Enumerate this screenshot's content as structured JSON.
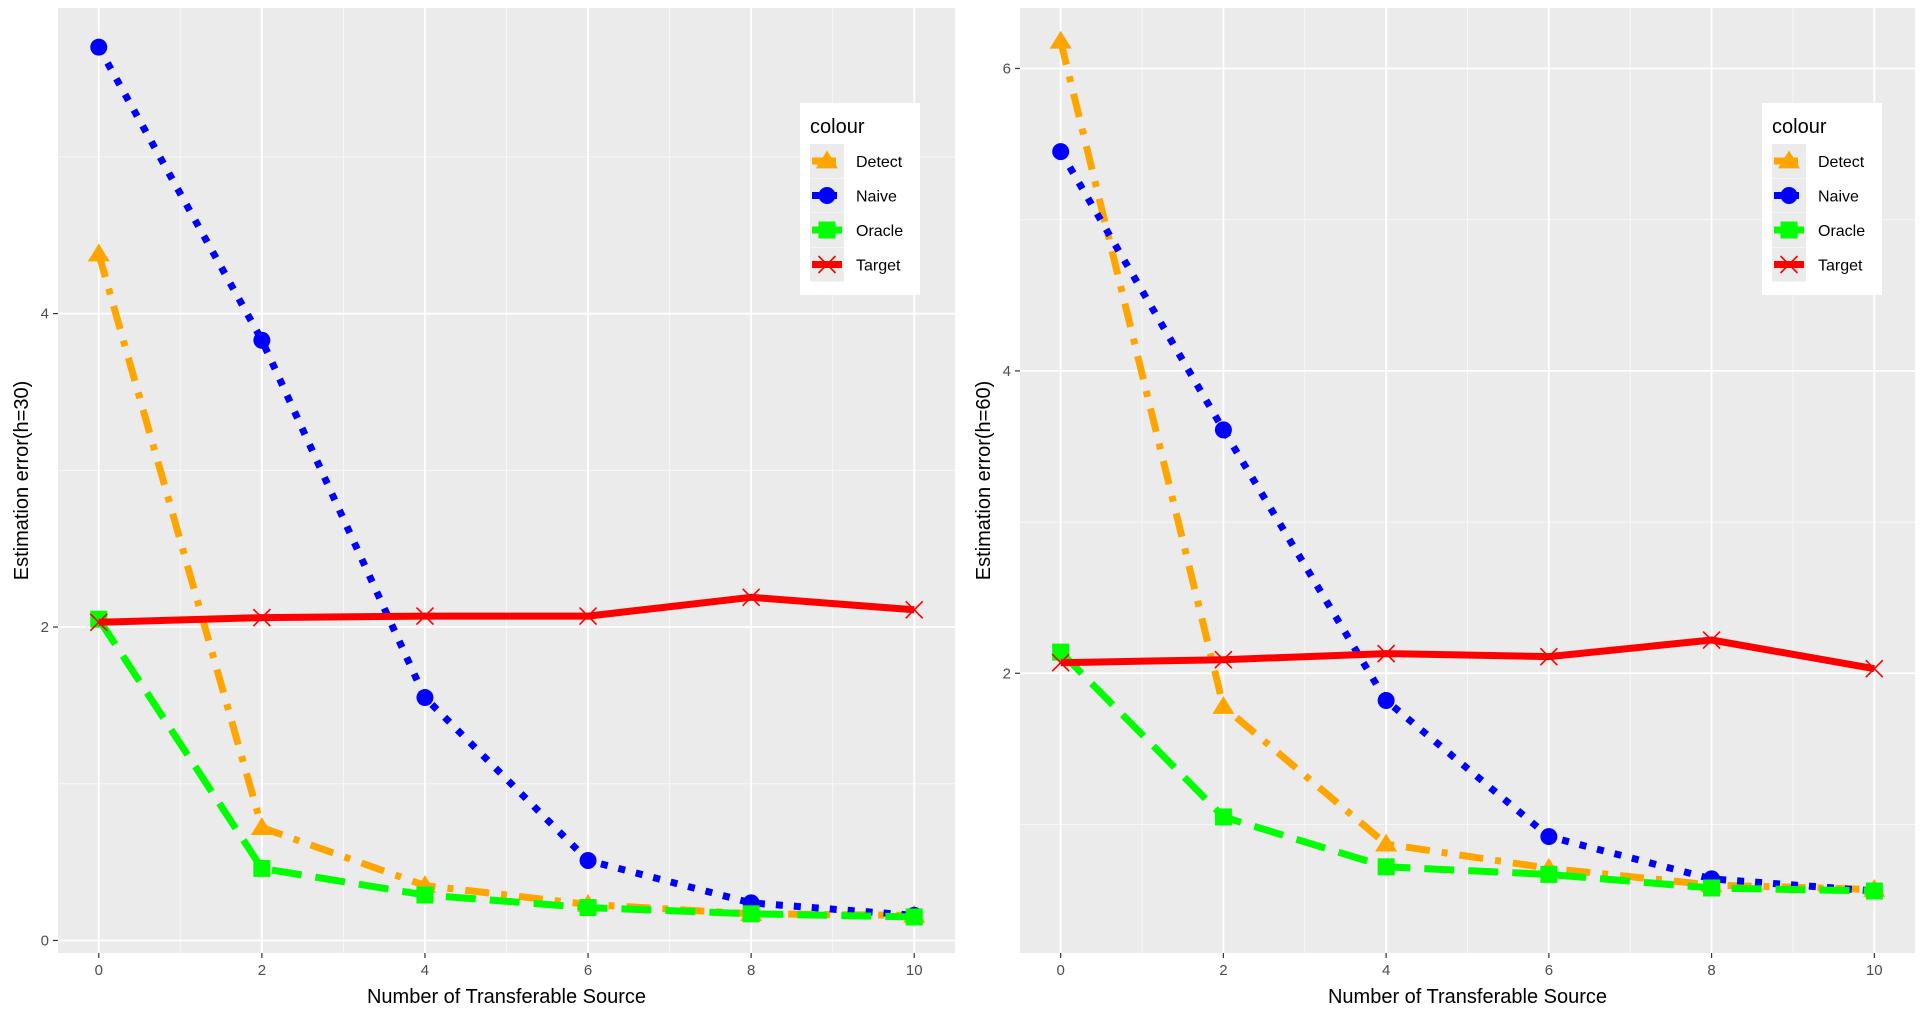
{
  "chart_data": [
    {
      "type": "line",
      "xlabel": "Number of Transferable Source",
      "ylabel": "Estimation error(h=30)",
      "x": [
        0,
        2,
        4,
        6,
        8,
        10
      ],
      "xticks": [
        0,
        2,
        4,
        6,
        8,
        10
      ],
      "yticks": [
        0,
        2,
        4
      ],
      "xlim": [
        -0.5,
        10.5
      ],
      "ylim": [
        -0.08,
        5.95
      ],
      "legend_title": "colour",
      "legend_position": "top-right",
      "series": [
        {
          "name": "Detect",
          "values": [
            4.38,
            0.72,
            0.35,
            0.23,
            0.17,
            0.16
          ],
          "color": "#FFA500",
          "marker": "triangle",
          "linestyle": "dashdot"
        },
        {
          "name": "Naive",
          "values": [
            5.7,
            3.83,
            1.55,
            0.51,
            0.24,
            0.16
          ],
          "color": "#0000FF",
          "marker": "circle",
          "linestyle": "dotted"
        },
        {
          "name": "Oracle",
          "values": [
            2.05,
            0.46,
            0.29,
            0.21,
            0.17,
            0.15
          ],
          "color": "#00FF00",
          "marker": "square",
          "linestyle": "dashed"
        },
        {
          "name": "Target",
          "values": [
            2.03,
            2.06,
            2.07,
            2.07,
            2.19,
            2.11
          ],
          "color": "#FF0000",
          "marker": "x",
          "linestyle": "solid"
        }
      ]
    },
    {
      "type": "line",
      "xlabel": "Number of Transferable Source",
      "ylabel": "Estimation error(h=60)",
      "x": [
        0,
        2,
        4,
        6,
        8,
        10
      ],
      "xticks": [
        0,
        2,
        4,
        6,
        8,
        10
      ],
      "yticks": [
        2,
        4,
        6
      ],
      "xlim": [
        -0.5,
        10.5
      ],
      "ylim": [
        0.15,
        6.4
      ],
      "legend_title": "colour",
      "legend_position": "top-right",
      "series": [
        {
          "name": "Detect",
          "values": [
            6.18,
            1.78,
            0.87,
            0.71,
            0.6,
            0.57
          ],
          "color": "#FFA500",
          "marker": "triangle",
          "linestyle": "dashdot"
        },
        {
          "name": "Naive",
          "values": [
            5.45,
            3.61,
            1.82,
            0.92,
            0.64,
            0.56
          ],
          "color": "#0000FF",
          "marker": "circle",
          "linestyle": "dotted"
        },
        {
          "name": "Oracle",
          "values": [
            2.14,
            1.05,
            0.72,
            0.67,
            0.58,
            0.56
          ],
          "color": "#00FF00",
          "marker": "square",
          "linestyle": "dashed"
        },
        {
          "name": "Target",
          "values": [
            2.07,
            2.09,
            2.13,
            2.11,
            2.22,
            2.03
          ],
          "color": "#FF0000",
          "marker": "x",
          "linestyle": "solid"
        }
      ]
    }
  ]
}
